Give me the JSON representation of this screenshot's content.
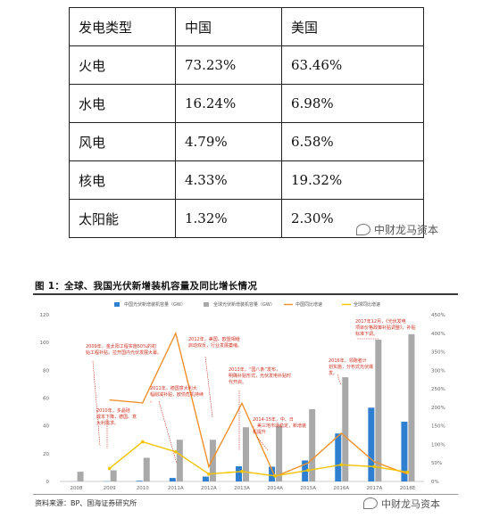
{
  "table": {
    "header": [
      "发电类型",
      "中国",
      "美国"
    ],
    "rows": [
      [
        "火电",
        "73.23%",
        "63.46%"
      ],
      [
        "水电",
        "16.24%",
        "6.98%"
      ],
      [
        "风电",
        "4.79%",
        "6.58%"
      ],
      [
        "核电",
        "4.33%",
        "19.32%"
      ],
      [
        "太阳能",
        "1.32%",
        "2.30%"
      ]
    ]
  },
  "watermark": "中财龙马资本",
  "figure": {
    "title": "图 1：全球、我国光伏新增装机容量及同比增长情况",
    "source": "资料来源：BP、国海证券研究所"
  },
  "chart_data": {
    "type": "bar",
    "categories": [
      "2008",
      "2009",
      "2010",
      "2011A",
      "2012A",
      "2013A",
      "2014A",
      "2015A",
      "2016A",
      "2017A",
      "2018E"
    ],
    "series": [
      {
        "name": "中国光伏新增装机容量（GW）",
        "kind": "bar",
        "axis": "left",
        "color": "#2e7fd0",
        "values": [
          0.05,
          0.16,
          0.5,
          2.5,
          3.5,
          10.9,
          10.6,
          15.1,
          34.5,
          53.1,
          43
        ]
      },
      {
        "name": "全球光伏新增装机容量（GW）",
        "kind": "bar",
        "axis": "left",
        "color": "#a9a9a9",
        "values": [
          7,
          8,
          17,
          30,
          30,
          39,
          40,
          52,
          75,
          102,
          106
        ]
      },
      {
        "name": "中国同比增速",
        "kind": "line",
        "axis": "right",
        "color": "#f0902a",
        "values": [
          null,
          220,
          212,
          400,
          40,
          211,
          13,
          50,
          130,
          53,
          20
        ]
      },
      {
        "name": "全球同比增速",
        "kind": "line",
        "axis": "right",
        "color": "#f5c400",
        "values": [
          null,
          35,
          107,
          80,
          20,
          27,
          15,
          30,
          45,
          40,
          25
        ]
      }
    ],
    "left_axis": {
      "ticks": [
        0,
        20,
        40,
        60,
        80,
        100,
        120
      ],
      "ylim": [
        0,
        120
      ]
    },
    "right_axis": {
      "ticks": [
        "0%",
        "50%",
        "100%",
        "150%",
        "200%",
        "250%",
        "300%",
        "350%",
        "400%",
        "450%"
      ],
      "ylim": [
        0,
        450
      ]
    },
    "legend_position": "top",
    "annotations": [
      "2009年，金太阳工程实施50%的初始工程补贴，拉开国内光伏发展大幕。",
      "2010年，多晶硅成本下降，德国、意大利需求。",
      "2011年，德国意大利大幅削减补贴，欧债危机持续。",
      "2012年，美国、欧盟相继启动双反，行业发展萎缩。",
      "2013年，“国八条”发布，明确补贴形式，光伏发电补贴时代开启。",
      "2014-15年，中、日、美三地市场稳定，新增装机提升",
      "2016年，领跑者计划实施，分布式光伏爆发。",
      "2017年12月，《光伏发电项目价格政策补贴调整》，补贴标准下调。"
    ]
  }
}
